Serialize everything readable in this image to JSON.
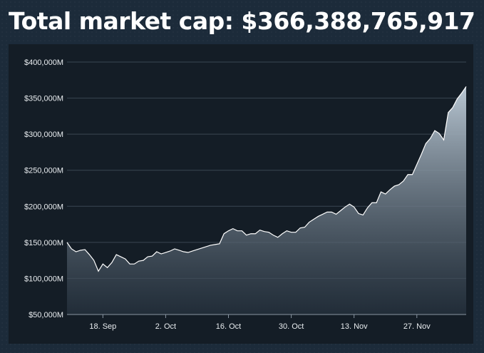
{
  "header": {
    "title": "Total market cap: $366,388,765,917"
  },
  "chart_data": {
    "type": "area",
    "title": "Total market cap: $366,388,765,917",
    "xlabel": "",
    "ylabel": "",
    "ylim": [
      50000,
      400000
    ],
    "y_unit": "M",
    "y_ticks": [
      {
        "value": 50000,
        "label": "$50,000M"
      },
      {
        "value": 100000,
        "label": "$100,000M"
      },
      {
        "value": 150000,
        "label": "$150,000M"
      },
      {
        "value": 200000,
        "label": "$200,000M"
      },
      {
        "value": 250000,
        "label": "$250,000M"
      },
      {
        "value": 300000,
        "label": "$300,000M"
      },
      {
        "value": 350000,
        "label": "$350,000M"
      },
      {
        "value": 400000,
        "label": "$400,000M"
      }
    ],
    "x_ticks": [
      {
        "date": "2017-09-18",
        "label": "18. Sep"
      },
      {
        "date": "2017-10-02",
        "label": "2. Oct"
      },
      {
        "date": "2017-10-16",
        "label": "16. Oct"
      },
      {
        "date": "2017-10-30",
        "label": "30. Oct"
      },
      {
        "date": "2017-11-13",
        "label": "13. Nov"
      },
      {
        "date": "2017-11-27",
        "label": "27. Nov"
      }
    ],
    "xlim": [
      "2017-09-10",
      "2017-12-06"
    ],
    "grid": true,
    "legend": "none",
    "colors": {
      "line": "#ffffff",
      "fill_top": "#b8c6d2",
      "fill_bottom": "#2a3744",
      "grid": "#3a4652"
    },
    "series": [
      {
        "points": [
          [
            "2017-09-10",
            150000
          ],
          [
            "2017-09-11",
            141000
          ],
          [
            "2017-09-12",
            137000
          ],
          [
            "2017-09-13",
            139000
          ],
          [
            "2017-09-14",
            140000
          ],
          [
            "2017-09-15",
            133000
          ],
          [
            "2017-09-16",
            125000
          ],
          [
            "2017-09-17",
            110000
          ],
          [
            "2017-09-18",
            120000
          ],
          [
            "2017-09-19",
            115000
          ],
          [
            "2017-09-20",
            122000
          ],
          [
            "2017-09-21",
            133000
          ],
          [
            "2017-09-22",
            130000
          ],
          [
            "2017-09-23",
            127000
          ],
          [
            "2017-09-24",
            120000
          ],
          [
            "2017-09-25",
            120000
          ],
          [
            "2017-09-26",
            124000
          ],
          [
            "2017-09-27",
            125000
          ],
          [
            "2017-09-28",
            130000
          ],
          [
            "2017-09-29",
            131000
          ],
          [
            "2017-09-30",
            137000
          ],
          [
            "2017-10-01",
            134000
          ],
          [
            "2017-10-02",
            136000
          ],
          [
            "2017-10-03",
            138000
          ],
          [
            "2017-10-04",
            141000
          ],
          [
            "2017-10-05",
            139000
          ],
          [
            "2017-10-06",
            137000
          ],
          [
            "2017-10-07",
            136000
          ],
          [
            "2017-10-08",
            138000
          ],
          [
            "2017-10-09",
            140000
          ],
          [
            "2017-10-10",
            142000
          ],
          [
            "2017-10-11",
            144000
          ],
          [
            "2017-10-12",
            146000
          ],
          [
            "2017-10-13",
            147000
          ],
          [
            "2017-10-14",
            148000
          ],
          [
            "2017-10-15",
            162000
          ],
          [
            "2017-10-16",
            166000
          ],
          [
            "2017-10-17",
            169000
          ],
          [
            "2017-10-18",
            166000
          ],
          [
            "2017-10-19",
            166000
          ],
          [
            "2017-10-20",
            160000
          ],
          [
            "2017-10-21",
            162000
          ],
          [
            "2017-10-22",
            162000
          ],
          [
            "2017-10-23",
            167000
          ],
          [
            "2017-10-24",
            165000
          ],
          [
            "2017-10-25",
            164000
          ],
          [
            "2017-10-26",
            160000
          ],
          [
            "2017-10-27",
            157000
          ],
          [
            "2017-10-28",
            162000
          ],
          [
            "2017-10-29",
            166000
          ],
          [
            "2017-10-30",
            164000
          ],
          [
            "2017-10-31",
            164000
          ],
          [
            "2017-11-01",
            170000
          ],
          [
            "2017-11-02",
            171000
          ],
          [
            "2017-11-03",
            178000
          ],
          [
            "2017-11-04",
            182000
          ],
          [
            "2017-11-05",
            186000
          ],
          [
            "2017-11-06",
            189000
          ],
          [
            "2017-11-07",
            192000
          ],
          [
            "2017-11-08",
            192000
          ],
          [
            "2017-11-09",
            189000
          ],
          [
            "2017-11-10",
            194000
          ],
          [
            "2017-11-11",
            199000
          ],
          [
            "2017-11-12",
            203000
          ],
          [
            "2017-11-13",
            199000
          ],
          [
            "2017-11-14",
            190000
          ],
          [
            "2017-11-15",
            188000
          ],
          [
            "2017-11-16",
            198000
          ],
          [
            "2017-11-17",
            205000
          ],
          [
            "2017-11-18",
            205000
          ],
          [
            "2017-11-19",
            220000
          ],
          [
            "2017-11-20",
            217000
          ],
          [
            "2017-11-21",
            223000
          ],
          [
            "2017-11-22",
            228000
          ],
          [
            "2017-11-23",
            230000
          ],
          [
            "2017-11-24",
            235000
          ],
          [
            "2017-11-25",
            244000
          ],
          [
            "2017-11-26",
            244000
          ],
          [
            "2017-11-27",
            258000
          ],
          [
            "2017-11-28",
            272000
          ],
          [
            "2017-11-29",
            287000
          ],
          [
            "2017-11-30",
            294000
          ],
          [
            "2017-12-01",
            305000
          ],
          [
            "2017-12-02",
            301000
          ],
          [
            "2017-12-03",
            292000
          ],
          [
            "2017-12-04",
            330000
          ],
          [
            "2017-12-05",
            337000
          ],
          [
            "2017-12-06",
            349000
          ],
          [
            "2017-12-07",
            357000
          ],
          [
            "2017-12-08",
            366000
          ]
        ]
      }
    ]
  }
}
